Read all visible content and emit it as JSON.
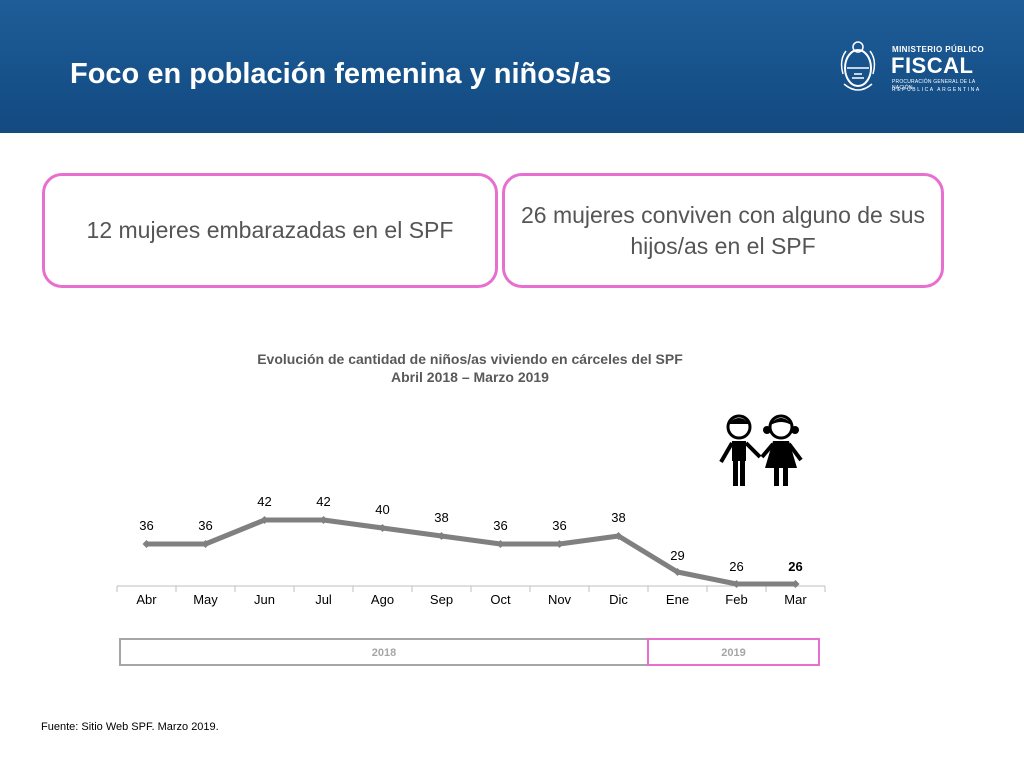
{
  "header": {
    "title": "Foco en población femenina y niños/as"
  },
  "logo": {
    "line1": "MINISTERIO PÚBLICO",
    "line2": "FISCAL",
    "line3": "PROCURACIÓN GENERAL DE LA NACIÓN",
    "line4": "REPÚBLICA ARGENTINA"
  },
  "callouts": [
    {
      "text": "12 mujeres embarazadas en el SPF"
    },
    {
      "text": "26 mujeres conviven con alguno de sus hijos/as en el SPF"
    }
  ],
  "chart_data": {
    "type": "line",
    "title": "Evolución de cantidad de niños/as viviendo en cárceles del SPF",
    "subtitle": "Abril 2018 – Marzo 2019",
    "categories": [
      "Abr",
      "May",
      "Jun",
      "Jul",
      "Ago",
      "Sep",
      "Oct",
      "Nov",
      "Dic",
      "Ene",
      "Feb",
      "Mar"
    ],
    "series": [
      {
        "values": [
          36,
          36,
          42,
          42,
          40,
          38,
          36,
          36,
          38,
          29,
          26,
          26
        ],
        "color": "#808080"
      }
    ],
    "data_labels": [
      "36",
      "36",
      "42",
      "42",
      "40",
      "38",
      "36",
      "36",
      "38",
      "29",
      "26",
      "26"
    ],
    "ylim": [
      0,
      45
    ],
    "grid": false,
    "legend": "none",
    "year_bands": [
      {
        "label": "2018",
        "from": "Abr",
        "to": "Dic",
        "border_color": "#a6a6a6"
      },
      {
        "label": "2019",
        "from": "Ene",
        "to": "Mar",
        "border_color": "#e76fd0"
      }
    ]
  },
  "icons": {
    "children": "children-icon"
  },
  "footer": {
    "source": "Fuente: Sitio Web SPF. Marzo 2019."
  }
}
